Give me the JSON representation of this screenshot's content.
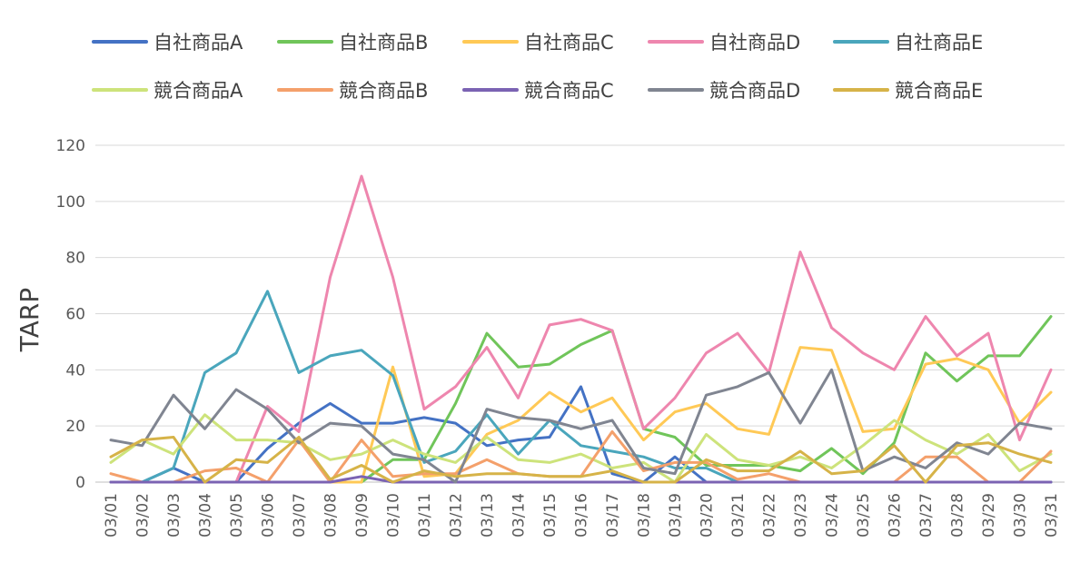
{
  "chart_data": {
    "type": "line",
    "title": "",
    "xlabel": "",
    "ylabel": "TARP",
    "ylim": [
      0,
      120
    ],
    "yticks": [
      0,
      20,
      40,
      60,
      80,
      100,
      120
    ],
    "grid": "horizontal",
    "legend_position": "top",
    "categories": [
      "03/01",
      "03/02",
      "03/03",
      "03/04",
      "03/05",
      "03/06",
      "03/07",
      "03/08",
      "03/09",
      "03/10",
      "03/11",
      "03/12",
      "03/13",
      "03/14",
      "03/15",
      "03/16",
      "03/17",
      "03/18",
      "03/19",
      "03/20",
      "03/21",
      "03/22",
      "03/23",
      "03/24",
      "03/25",
      "03/26",
      "03/27",
      "03/28",
      "03/29",
      "03/30",
      "03/31"
    ],
    "series": [
      {
        "name": "自社商品A",
        "color": "#4472C4",
        "values": [
          0,
          0,
          5,
          0,
          0,
          12,
          21,
          28,
          21,
          21,
          23,
          21,
          13,
          15,
          16,
          34,
          3,
          0,
          9,
          0,
          0,
          0,
          0,
          0,
          0,
          0,
          0,
          0,
          0,
          0,
          0
        ]
      },
      {
        "name": "自社商品B",
        "color": "#70C55A",
        "values": [
          0,
          0,
          0,
          0,
          0,
          0,
          0,
          0,
          0,
          8,
          8,
          28,
          53,
          41,
          42,
          49,
          54,
          19,
          16,
          6,
          6,
          6,
          4,
          12,
          3,
          14,
          46,
          36,
          45,
          45,
          59
        ]
      },
      {
        "name": "自社商品C",
        "color": "#FFC956",
        "values": [
          0,
          0,
          0,
          0,
          0,
          0,
          0,
          0,
          0,
          41,
          2,
          3,
          17,
          22,
          32,
          25,
          30,
          15,
          25,
          28,
          19,
          17,
          48,
          47,
          18,
          19,
          42,
          44,
          40,
          21,
          32
        ]
      },
      {
        "name": "自社商品D",
        "color": "#EE86AE",
        "values": [
          0,
          0,
          0,
          0,
          0,
          27,
          18,
          73,
          109,
          73,
          26,
          34,
          48,
          30,
          56,
          58,
          54,
          19,
          30,
          46,
          53,
          39,
          82,
          55,
          46,
          40,
          59,
          45,
          53,
          15,
          40
        ]
      },
      {
        "name": "自社商品E",
        "color": "#4AA6BC",
        "values": [
          0,
          0,
          5,
          39,
          46,
          68,
          39,
          45,
          47,
          38,
          7,
          11,
          24,
          10,
          22,
          13,
          11,
          9,
          5,
          5,
          0,
          0,
          0,
          0,
          0,
          0,
          0,
          0,
          0,
          0,
          0
        ]
      },
      {
        "name": "競合商品A",
        "color": "#CDE37B",
        "values": [
          7,
          15,
          10,
          24,
          15,
          15,
          14,
          8,
          10,
          15,
          10,
          7,
          16,
          8,
          7,
          10,
          5,
          7,
          0,
          17,
          8,
          6,
          9,
          5,
          13,
          22,
          15,
          10,
          17,
          4,
          10
        ]
      },
      {
        "name": "競合商品B",
        "color": "#F4A06B",
        "values": [
          3,
          0,
          0,
          4,
          5,
          0,
          15,
          0,
          15,
          2,
          3,
          3,
          8,
          3,
          2,
          2,
          18,
          4,
          7,
          7,
          1,
          3,
          0,
          0,
          0,
          0,
          9,
          9,
          0,
          0,
          11
        ]
      },
      {
        "name": "競合商品C",
        "color": "#7B63B3",
        "values": [
          0,
          0,
          0,
          0,
          0,
          0,
          0,
          0,
          2,
          0,
          0,
          0,
          0,
          0,
          0,
          0,
          0,
          0,
          0,
          0,
          0,
          0,
          0,
          0,
          0,
          0,
          0,
          0,
          0,
          0,
          0
        ]
      },
      {
        "name": "競合商品D",
        "color": "#808591",
        "values": [
          15,
          13,
          31,
          19,
          33,
          26,
          14,
          21,
          20,
          10,
          8,
          0,
          26,
          23,
          22,
          19,
          22,
          5,
          3,
          31,
          34,
          39,
          21,
          40,
          4,
          9,
          5,
          14,
          10,
          21,
          19
        ]
      },
      {
        "name": "競合商品E",
        "color": "#D6B348",
        "values": [
          9,
          15,
          16,
          0,
          8,
          7,
          16,
          1,
          6,
          0,
          4,
          2,
          3,
          3,
          2,
          2,
          4,
          0,
          0,
          8,
          4,
          4,
          11,
          3,
          4,
          13,
          0,
          13,
          14,
          10,
          7
        ]
      }
    ]
  }
}
